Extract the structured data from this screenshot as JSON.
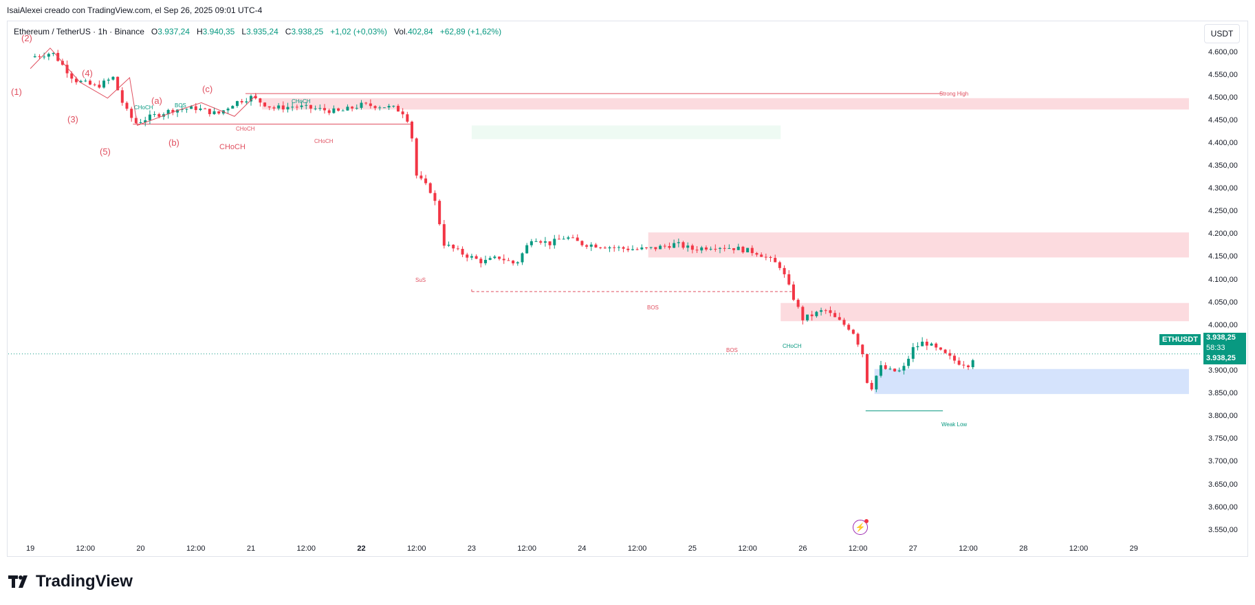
{
  "caption": "IsaiAlexei creado con TradingView.com, el Sep 26, 2025 09:01 UTC-4",
  "legend": {
    "title": "Ethereum / TetherUS · 1h · Binance",
    "o_label": "O",
    "o_value": "3.937,24",
    "h_label": "H",
    "h_value": "3.940,35",
    "l_label": "L",
    "l_value": "3.935,24",
    "c_label": "C",
    "c_value": "3.938,25",
    "change": "+1,02 (+0,03%)",
    "vol_label": "Vol.",
    "vol_value": "402,84",
    "vol_change": "+62,89 (+1,62%)"
  },
  "currency": "USDT",
  "symbol_tag": "ETHUSDT",
  "price_tag": {
    "price": "3.938,25",
    "countdown": "58:33",
    "price2": "3.938,25"
  },
  "brand": "TradingView",
  "colors": {
    "up": "#089981",
    "down": "#f23645",
    "supply_zone": "#fcdbdf",
    "demand_zone": "#d5e3fc",
    "light_green_zone": "#eefaf3"
  },
  "chart_data": {
    "type": "candlestick",
    "symbol": "ETHUSDT",
    "interval": "1h",
    "y_ticks": [
      "4.600,00",
      "4.550,00",
      "4.500,00",
      "4.450,00",
      "4.400,00",
      "4.350,00",
      "4.300,00",
      "4.250,00",
      "4.200,00",
      "4.150,00",
      "4.100,00",
      "4.050,00",
      "4.000,00",
      "3.950,00",
      "3.900,00",
      "3.850,00",
      "3.800,00",
      "3.750,00",
      "3.700,00",
      "3.650,00",
      "3.600,00",
      "3.550,00"
    ],
    "x_ticks": [
      "19",
      "12:00",
      "20",
      "12:00",
      "21",
      "12:00",
      "22",
      "12:00",
      "23",
      "12:00",
      "24",
      "12:00",
      "25",
      "12:00",
      "26",
      "12:00",
      "27",
      "12:00",
      "28",
      "12:00",
      "29"
    ],
    "x_ticks_bold": [
      "22"
    ],
    "ylim": [
      3530,
      4625
    ],
    "xlim": [
      -0.2,
      10.6
    ],
    "last_price": 3938.25,
    "close_path": [
      [
        0.0,
        4590
      ],
      [
        0.2,
        4600
      ],
      [
        0.4,
        4540
      ],
      [
        0.6,
        4525
      ],
      [
        0.75,
        4545
      ],
      [
        0.85,
        4480
      ],
      [
        0.95,
        4445
      ],
      [
        1.1,
        4460
      ],
      [
        1.3,
        4475
      ],
      [
        1.5,
        4478
      ],
      [
        1.7,
        4465
      ],
      [
        1.85,
        4490
      ],
      [
        2.0,
        4502
      ],
      [
        2.2,
        4478
      ],
      [
        2.4,
        4482
      ],
      [
        2.6,
        4476
      ],
      [
        2.8,
        4470
      ],
      [
        3.0,
        4485
      ],
      [
        3.2,
        4482
      ],
      [
        3.3,
        4478
      ],
      [
        3.4,
        4466
      ],
      [
        3.45,
        4430
      ],
      [
        3.5,
        4330
      ],
      [
        3.65,
        4290
      ],
      [
        3.75,
        4180
      ],
      [
        3.9,
        4160
      ],
      [
        4.1,
        4140
      ],
      [
        4.25,
        4150
      ],
      [
        4.4,
        4135
      ],
      [
        4.55,
        4195
      ],
      [
        4.7,
        4180
      ],
      [
        4.85,
        4195
      ],
      [
        5.0,
        4180
      ],
      [
        5.2,
        4175
      ],
      [
        5.35,
        4170
      ],
      [
        5.5,
        4168
      ],
      [
        5.65,
        4170
      ],
      [
        5.85,
        4180
      ],
      [
        6.0,
        4168
      ],
      [
        6.2,
        4175
      ],
      [
        6.4,
        4170
      ],
      [
        6.6,
        4160
      ],
      [
        6.8,
        4130
      ],
      [
        6.9,
        4070
      ],
      [
        7.0,
        4015
      ],
      [
        7.1,
        4025
      ],
      [
        7.2,
        4035
      ],
      [
        7.3,
        4015
      ],
      [
        7.45,
        3990
      ],
      [
        7.55,
        3935
      ],
      [
        7.6,
        3850
      ],
      [
        7.7,
        3910
      ],
      [
        7.8,
        3900
      ],
      [
        7.9,
        3900
      ],
      [
        8.0,
        3950
      ],
      [
        8.1,
        3965
      ],
      [
        8.2,
        3950
      ],
      [
        8.3,
        3935
      ],
      [
        8.4,
        3920
      ],
      [
        8.5,
        3915
      ],
      [
        8.57,
        3938.25
      ]
    ],
    "zones": [
      {
        "kind": "supply",
        "y1": 4475,
        "y2": 4500
      },
      {
        "kind": "light",
        "y1": 4410,
        "y2": 4440
      },
      {
        "kind": "supply",
        "y1": 4150,
        "y2": 4205
      },
      {
        "kind": "supply",
        "y1": 4010,
        "y2": 4050
      },
      {
        "kind": "demand",
        "y1": 3850,
        "y2": 3905
      }
    ],
    "annotations": {
      "strong_high": "Strong High",
      "weak_low": "Weak Low",
      "choch": "CHoCH",
      "bos": "BOS",
      "sus": "SuS",
      "waves": [
        "(1)",
        "(2)",
        "(3)",
        "(4)",
        "(5)",
        "(a)",
        "(b)",
        "(c)"
      ]
    }
  }
}
